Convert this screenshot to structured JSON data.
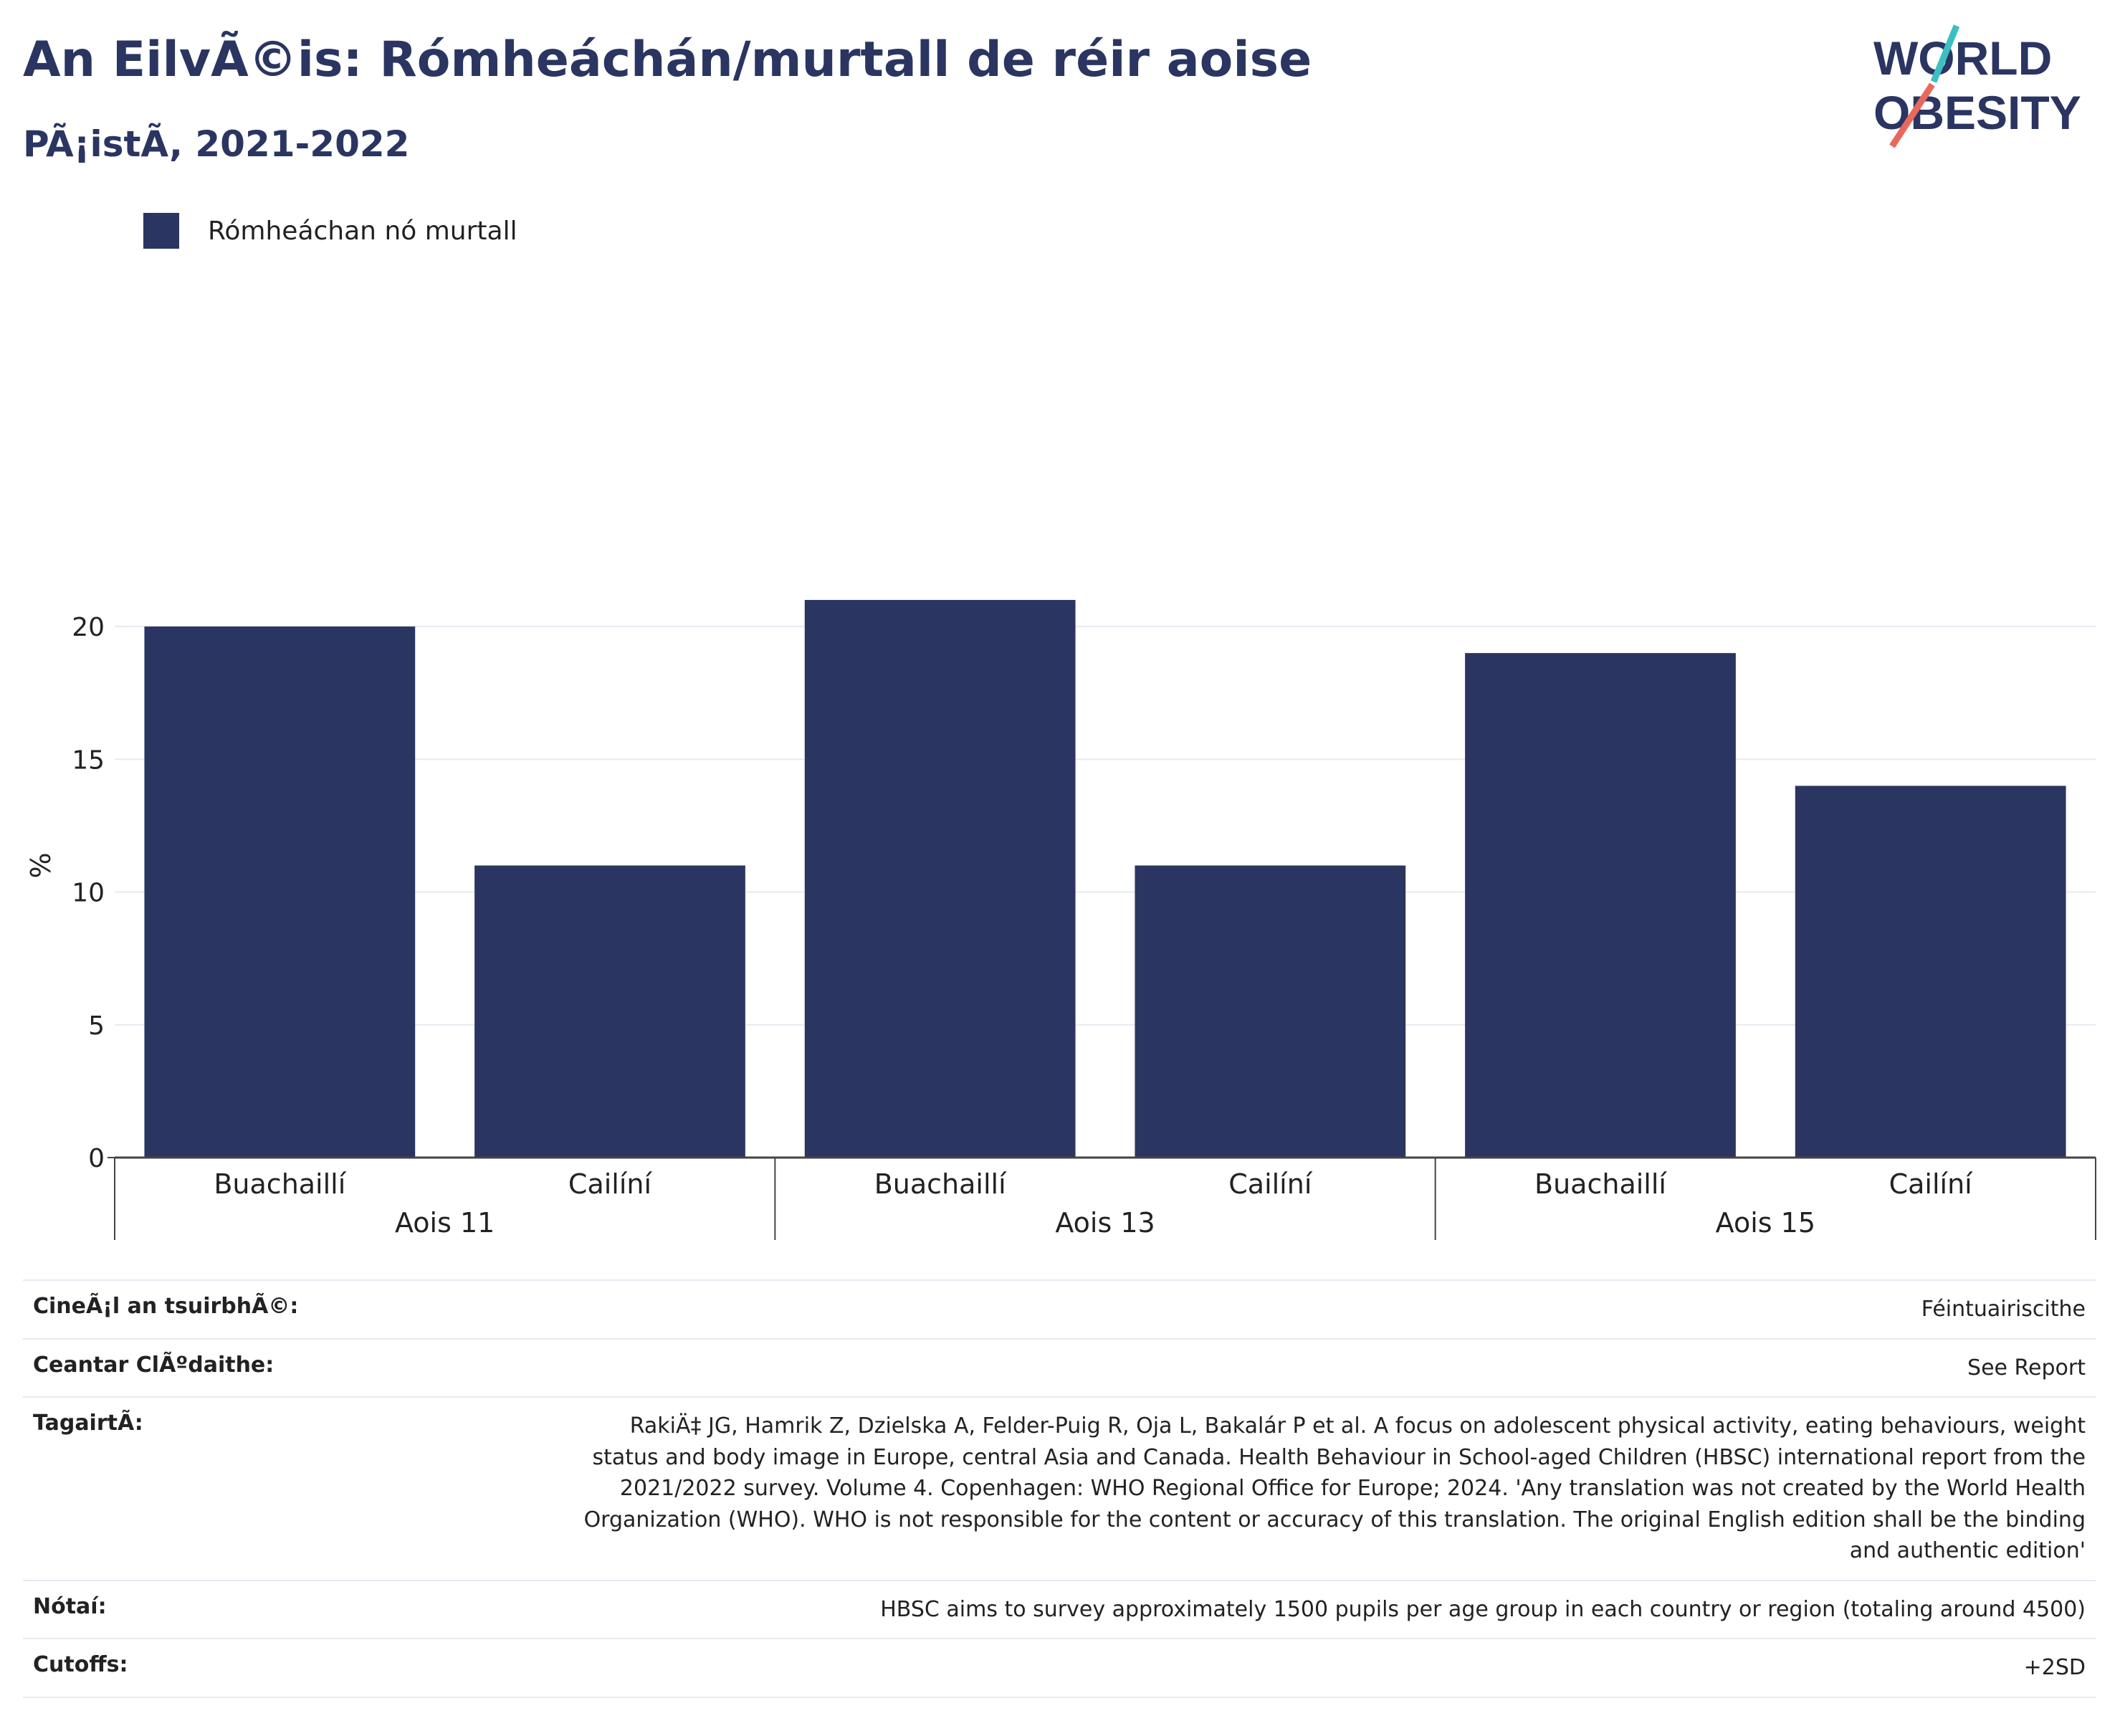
{
  "header": {
    "title": "An EilvÃ©is: Rómheáchán/murtall de réir aoise",
    "subtitle": "PÃ¡istÃ, 2021-2022",
    "logo_line1": "WORLD",
    "logo_line2": "OBESITY"
  },
  "colors": {
    "bar": "#2a3561",
    "grid": "#e6eaf1",
    "title": "#2a3561"
  },
  "chart_data": {
    "type": "bar",
    "ylabel": "%",
    "ylim": [
      0,
      22
    ],
    "yticks": [
      0,
      5,
      10,
      15,
      20
    ],
    "grid": true,
    "legend": {
      "placement": "top-left",
      "entries": [
        "Rómheáchan nó murtall"
      ]
    },
    "groups": [
      {
        "label": "Aois 11",
        "categories": [
          "Buachaillí",
          "Cailíní"
        ],
        "values": [
          20,
          11
        ]
      },
      {
        "label": "Aois 13",
        "categories": [
          "Buachaillí",
          "Cailíní"
        ],
        "values": [
          21,
          11
        ]
      },
      {
        "label": "Aois 15",
        "categories": [
          "Buachaillí",
          "Cailíní"
        ],
        "values": [
          19,
          14
        ]
      }
    ],
    "series": [
      {
        "name": "Rómheáchan nó murtall",
        "values": [
          20,
          11,
          21,
          11,
          19,
          14
        ]
      }
    ]
  },
  "meta": [
    {
      "key": "CineÃ¡l an tsuirbhÃ©:",
      "value": "Féintuairiscithe"
    },
    {
      "key": "Ceantar ClÃºdaithe:",
      "value": "See Report"
    },
    {
      "key": "TagairtÃ:",
      "value": "RakiÄ‡ JG, Hamrik Z, Dzielska A, Felder-Puig R, Oja L, Bakalár P et al. A focus on adolescent physical activity, eating behaviours, weight status and body image in Europe, central Asia and Canada. Health Behaviour in School-aged Children (HBSC) international report from the 2021/2022 survey. Volume 4. Copenhagen: WHO Regional Office for Europe; 2024. 'Any translation was not created by the World Health Organization (WHO). WHO is not responsible for the content or accuracy of this translation. The original English edition shall be the binding and authentic edition'"
    },
    {
      "key": "Nótaí:",
      "value": "HBSC aims to survey approximately 1500 pupils per age group in each country or region (totaling around 4500)"
    },
    {
      "key": "Cutoffs:",
      "value": "+2SD"
    }
  ]
}
